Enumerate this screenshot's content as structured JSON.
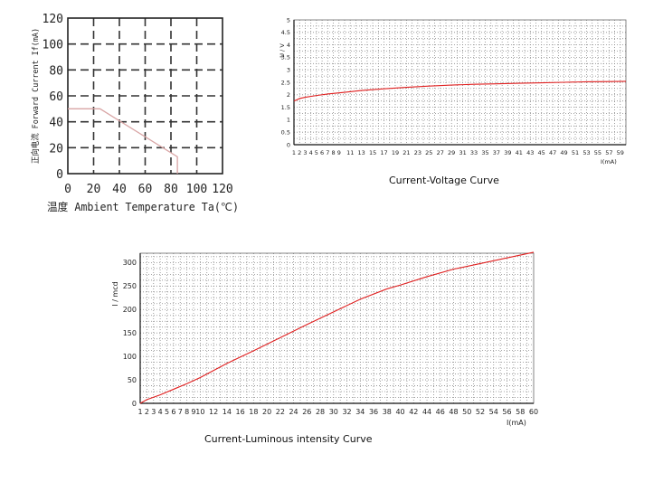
{
  "chart_data": [
    {
      "type": "line",
      "title": "",
      "xlabel": "温度 Ambient Temperature Ta(℃)",
      "ylabel": "正向电流 Forward Current If(mA)",
      "xlim": [
        0,
        120
      ],
      "ylim": [
        0,
        120
      ],
      "x_ticks": [
        "0",
        "20",
        "40",
        "60",
        "80",
        "100",
        "120"
      ],
      "y_ticks": [
        "0",
        "20",
        "40",
        "60",
        "80",
        "100",
        "120"
      ],
      "grid": true,
      "grid_style": "dashed",
      "series": [
        {
          "color": "#d9a5a5",
          "x": [
            0,
            25,
            85,
            85
          ],
          "y": [
            50,
            50,
            13,
            0
          ]
        }
      ]
    },
    {
      "type": "line",
      "title": "Current-Voltage Curve",
      "xlabel": "I(mA)",
      "ylabel": "U / V",
      "xlim": [
        1,
        60
      ],
      "ylim": [
        0,
        5
      ],
      "x_ticks": [
        "1",
        "2",
        "3",
        "4",
        "5",
        "6",
        "7",
        "8",
        "9",
        "11",
        "13",
        "15",
        "17",
        "19",
        "21",
        "23",
        "25",
        "27",
        "29",
        "31",
        "33",
        "35",
        "37",
        "39",
        "41",
        "43",
        "45",
        "47",
        "49",
        "51",
        "53",
        "55",
        "57",
        "59"
      ],
      "y_ticks": [
        "0",
        "0.5",
        "1",
        "1.5",
        "2",
        "2.5",
        "3",
        "3.5",
        "4",
        "4.5",
        "5"
      ],
      "grid": true,
      "grid_style": "dotted",
      "series": [
        {
          "color": "#e02020",
          "x": [
            1,
            2,
            3,
            5,
            7,
            10,
            13,
            17,
            21,
            25,
            29,
            33,
            37,
            41,
            45,
            49,
            53,
            57,
            60
          ],
          "y": [
            1.75,
            1.85,
            1.9,
            1.97,
            2.03,
            2.1,
            2.17,
            2.24,
            2.3,
            2.35,
            2.39,
            2.42,
            2.44,
            2.46,
            2.48,
            2.5,
            2.52,
            2.53,
            2.54
          ]
        }
      ]
    },
    {
      "type": "line",
      "title": "Current-Luminous intensity Curve",
      "xlabel": "I(mA)",
      "ylabel": "I / mcd",
      "xlim": [
        1,
        60
      ],
      "ylim": [
        0,
        320
      ],
      "x_ticks": [
        "1",
        "2",
        "3",
        "4",
        "5",
        "6",
        "7",
        "8",
        "9",
        "10",
        "12",
        "14",
        "16",
        "18",
        "20",
        "22",
        "24",
        "26",
        "28",
        "30",
        "32",
        "34",
        "36",
        "38",
        "40",
        "42",
        "44",
        "46",
        "48",
        "50",
        "52",
        "54",
        "56",
        "58",
        "60"
      ],
      "y_ticks": [
        "0",
        "50",
        "100",
        "150",
        "200",
        "250",
        "300"
      ],
      "grid": true,
      "grid_style": "dotted",
      "series": [
        {
          "color": "#e02020",
          "x": [
            1,
            2,
            4,
            6,
            8,
            10,
            14,
            18,
            22,
            26,
            30,
            34,
            38,
            40,
            44,
            48,
            52,
            56,
            60
          ],
          "y": [
            0,
            8,
            18,
            30,
            42,
            55,
            85,
            112,
            140,
            168,
            195,
            222,
            244,
            252,
            270,
            286,
            298,
            310,
            322
          ]
        }
      ]
    }
  ]
}
